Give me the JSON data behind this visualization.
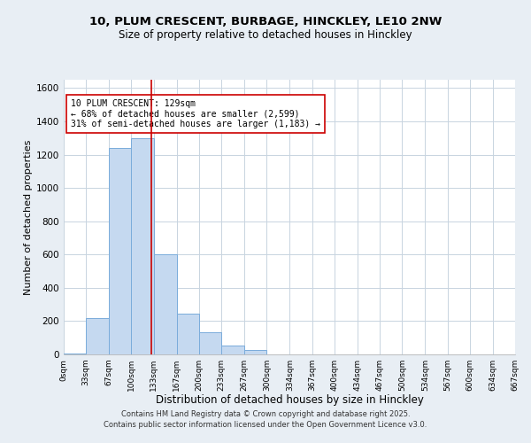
{
  "title1": "10, PLUM CRESCENT, BURBAGE, HINCKLEY, LE10 2NW",
  "title2": "Size of property relative to detached houses in Hinckley",
  "xlabel": "Distribution of detached houses by size in Hinckley",
  "ylabel": "Number of detached properties",
  "bin_edges": [
    0,
    33,
    67,
    100,
    133,
    167,
    200,
    233,
    267,
    300,
    334,
    367,
    400,
    434,
    467,
    500,
    534,
    567,
    600,
    634,
    667
  ],
  "bar_heights": [
    5,
    220,
    1240,
    1300,
    600,
    245,
    135,
    55,
    25,
    0,
    0,
    0,
    0,
    0,
    0,
    0,
    0,
    0,
    0,
    0
  ],
  "bar_color": "#c5d9f0",
  "bar_edge_color": "#7aacdb",
  "property_line_x": 129,
  "property_line_color": "#cc0000",
  "annotation_text": "10 PLUM CRESCENT: 129sqm\n← 68% of detached houses are smaller (2,599)\n31% of semi-detached houses are larger (1,183) →",
  "annotation_box_edge_color": "#cc0000",
  "ylim": [
    0,
    1650
  ],
  "yticks": [
    0,
    200,
    400,
    600,
    800,
    1000,
    1200,
    1400,
    1600
  ],
  "tick_labels": [
    "0sqm",
    "33sqm",
    "67sqm",
    "100sqm",
    "133sqm",
    "167sqm",
    "200sqm",
    "233sqm",
    "267sqm",
    "300sqm",
    "334sqm",
    "367sqm",
    "400sqm",
    "434sqm",
    "467sqm",
    "500sqm",
    "534sqm",
    "567sqm",
    "600sqm",
    "634sqm",
    "667sqm"
  ],
  "footnote1": "Contains HM Land Registry data © Crown copyright and database right 2025.",
  "footnote2": "Contains public sector information licensed under the Open Government Licence v3.0.",
  "bg_color": "#e8eef4",
  "plot_bg_color": "#ffffff",
  "grid_color": "#c8d4e0"
}
